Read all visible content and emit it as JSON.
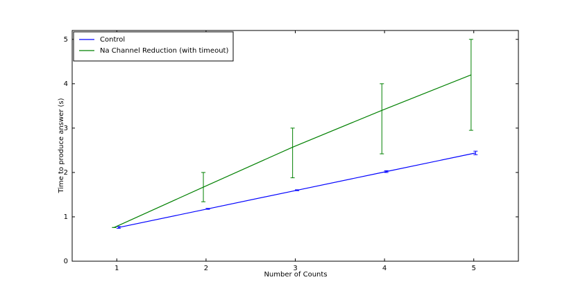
{
  "chart_data": {
    "type": "errorbar_line",
    "xlabel": "Number of Counts",
    "ylabel": "Time to produce answer (s)",
    "xlim": [
      0.5,
      5.5
    ],
    "xticks": [
      1,
      2,
      3,
      4,
      5
    ],
    "ylim": [
      0,
      5.2
    ],
    "yticks": [
      0,
      1,
      2,
      3,
      4,
      5
    ],
    "legend": "upper left",
    "series": [
      {
        "name": "Control",
        "color": "#0000ff",
        "x": [
          1.02,
          2.02,
          3.02,
          4.02,
          5.02
        ],
        "values": [
          0.76,
          1.18,
          1.6,
          2.02,
          2.44
        ],
        "err_lower": [
          0.02,
          0.01,
          0.01,
          0.02,
          0.04
        ],
        "err_upper": [
          0.02,
          0.01,
          0.01,
          0.02,
          0.04
        ]
      },
      {
        "name": "Na Channel Reduction (with timeout)",
        "color": "#008000",
        "x": [
          0.97,
          1.97,
          2.97,
          3.97,
          4.97
        ],
        "values": [
          0.76,
          1.67,
          2.57,
          3.4,
          4.2
        ],
        "err_lower": [
          0,
          0.33,
          0.69,
          0.98,
          1.25
        ],
        "err_upper": [
          0,
          0.33,
          0.43,
          0.6,
          0.8
        ]
      }
    ]
  }
}
